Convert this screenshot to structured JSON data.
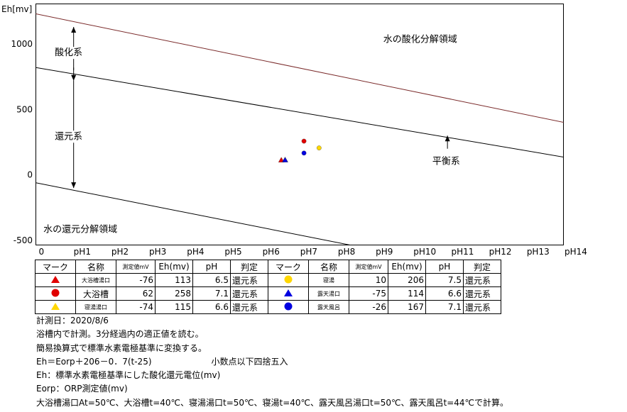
{
  "chart_data": {
    "type": "scatter",
    "ylabel": "Eh[mv]",
    "xlim": [
      0,
      14
    ],
    "ylim": [
      -500,
      1300
    ],
    "x_ticks": [
      {
        "x": 0,
        "label": "0"
      },
      {
        "x": 1,
        "label": "pH1"
      },
      {
        "x": 2,
        "label": "pH2"
      },
      {
        "x": 3,
        "label": "pH3"
      },
      {
        "x": 4,
        "label": "pH4"
      },
      {
        "x": 5,
        "label": "pH5"
      },
      {
        "x": 6,
        "label": "pH6"
      },
      {
        "x": 7,
        "label": "pH7"
      },
      {
        "x": 8,
        "label": "pH8"
      },
      {
        "x": 9,
        "label": "pH9"
      },
      {
        "x": 10,
        "label": "pH10"
      },
      {
        "x": 11,
        "label": "pH11"
      },
      {
        "x": 12,
        "label": "pH12"
      },
      {
        "x": 13,
        "label": "pH13"
      },
      {
        "x": 14,
        "label": "pH14"
      }
    ],
    "y_ticks": [
      {
        "y": 1000,
        "label": "1000"
      },
      {
        "y": 500,
        "label": "500"
      },
      {
        "y": 0,
        "label": "0"
      },
      {
        "y": -500,
        "label": "-500"
      }
    ],
    "lines": [
      {
        "name": "oxidation-limit",
        "color": "#7a2a2a",
        "points": [
          [
            0,
            1230
          ],
          [
            14,
            400
          ]
        ]
      },
      {
        "name": "equilibrium",
        "color": "#000000",
        "points": [
          [
            0,
            820
          ],
          [
            14,
            135
          ]
        ]
      },
      {
        "name": "reduction-limit",
        "color": "#000000",
        "points": [
          [
            0,
            -60
          ],
          [
            8.4,
            -540
          ]
        ]
      }
    ],
    "points": [
      {
        "name": "大浴槽湯口",
        "shape": "triangle",
        "color": "#e00000",
        "x": 6.5,
        "y": 113
      },
      {
        "name": "大浴槽",
        "shape": "circle",
        "color": "#e00000",
        "x": 7.1,
        "y": 258
      },
      {
        "name": "寝湯湯口",
        "shape": "triangle",
        "color": "#ffd700",
        "x": 6.6,
        "y": 115
      },
      {
        "name": "寝湯",
        "shape": "circle",
        "color": "#ffd700",
        "x": 7.5,
        "y": 206
      },
      {
        "name": "露天湯口",
        "shape": "triangle",
        "color": "#0000e0",
        "x": 6.6,
        "y": 114
      },
      {
        "name": "露天風呂",
        "shape": "circle",
        "color": "#0000e0",
        "x": 7.1,
        "y": 167
      }
    ],
    "annotations": [
      {
        "text": "水の酸化分解領域",
        "x": 9.2,
        "y": 1040
      },
      {
        "text": "酸化系",
        "x": 0.5,
        "y": 940
      },
      {
        "text": "還元系",
        "x": 0.5,
        "y": 300
      },
      {
        "text": "平衡系",
        "x": 10.5,
        "y": 110
      },
      {
        "text": "水の還元分解領域",
        "x": 0.2,
        "y": -410
      }
    ],
    "arrows": [
      {
        "x": 1,
        "from": 800,
        "to": 1130
      },
      {
        "x": 1,
        "from": 820,
        "to": 720
      },
      {
        "x": 1,
        "from": 720,
        "to": -100
      },
      {
        "x": 10.9,
        "from": 200,
        "to": 300
      }
    ]
  },
  "table": {
    "headers": [
      "マーク",
      "名称",
      "測定値mV",
      "Eh(mv)",
      "pH",
      "判定",
      "マーク",
      "名称",
      "測定値mV",
      "Eh(mv)",
      "pH",
      "判定"
    ],
    "rows": [
      [
        {
          "mark": "triangle",
          "color": "#e00000",
          "name": "大浴槽湯口",
          "measured": "-76",
          "eh": "113",
          "ph": "6.5",
          "judge": "還元系"
        },
        {
          "mark": "circle",
          "color": "#ffd700",
          "name": "寝湯",
          "measured": "10",
          "eh": "206",
          "ph": "7.5",
          "judge": "還元系"
        }
      ],
      [
        {
          "mark": "circle",
          "color": "#e00000",
          "name": "大浴槽",
          "measured": "62",
          "eh": "258",
          "ph": "7.1",
          "judge": "還元系"
        },
        {
          "mark": "triangle",
          "color": "#0000e0",
          "name": "露天湯口",
          "measured": "-75",
          "eh": "114",
          "ph": "6.6",
          "judge": "還元系"
        }
      ],
      [
        {
          "mark": "triangle",
          "color": "#ffd700",
          "name": "寝湯湯口",
          "measured": "-74",
          "eh": "115",
          "ph": "6.6",
          "judge": "還元系"
        },
        {
          "mark": "circle",
          "color": "#0000e0",
          "name": "露天風呂",
          "measured": "-26",
          "eh": "167",
          "ph": "7.1",
          "judge": "還元系"
        }
      ]
    ]
  },
  "notes": [
    "計測日：2020/8/6",
    "浴槽内で計測。3分経過内の適正値を読む。",
    "簡易換算式で標準水素電極基準に変換する。",
    "Eh＝Eorp＋206－0．7(t-25)　　　　　　　小数点以下四捨五入",
    "Eh：標準水素電極基準にした酸化還元電位(mv)",
    "Eorp：ORP測定値(mv)",
    "大浴槽湯口At=50℃、大浴槽t=40℃、寝湯湯口t=50℃、寝湯t=40℃、露天風呂湯口t=50℃、露天風呂t=44℃で計算。"
  ]
}
